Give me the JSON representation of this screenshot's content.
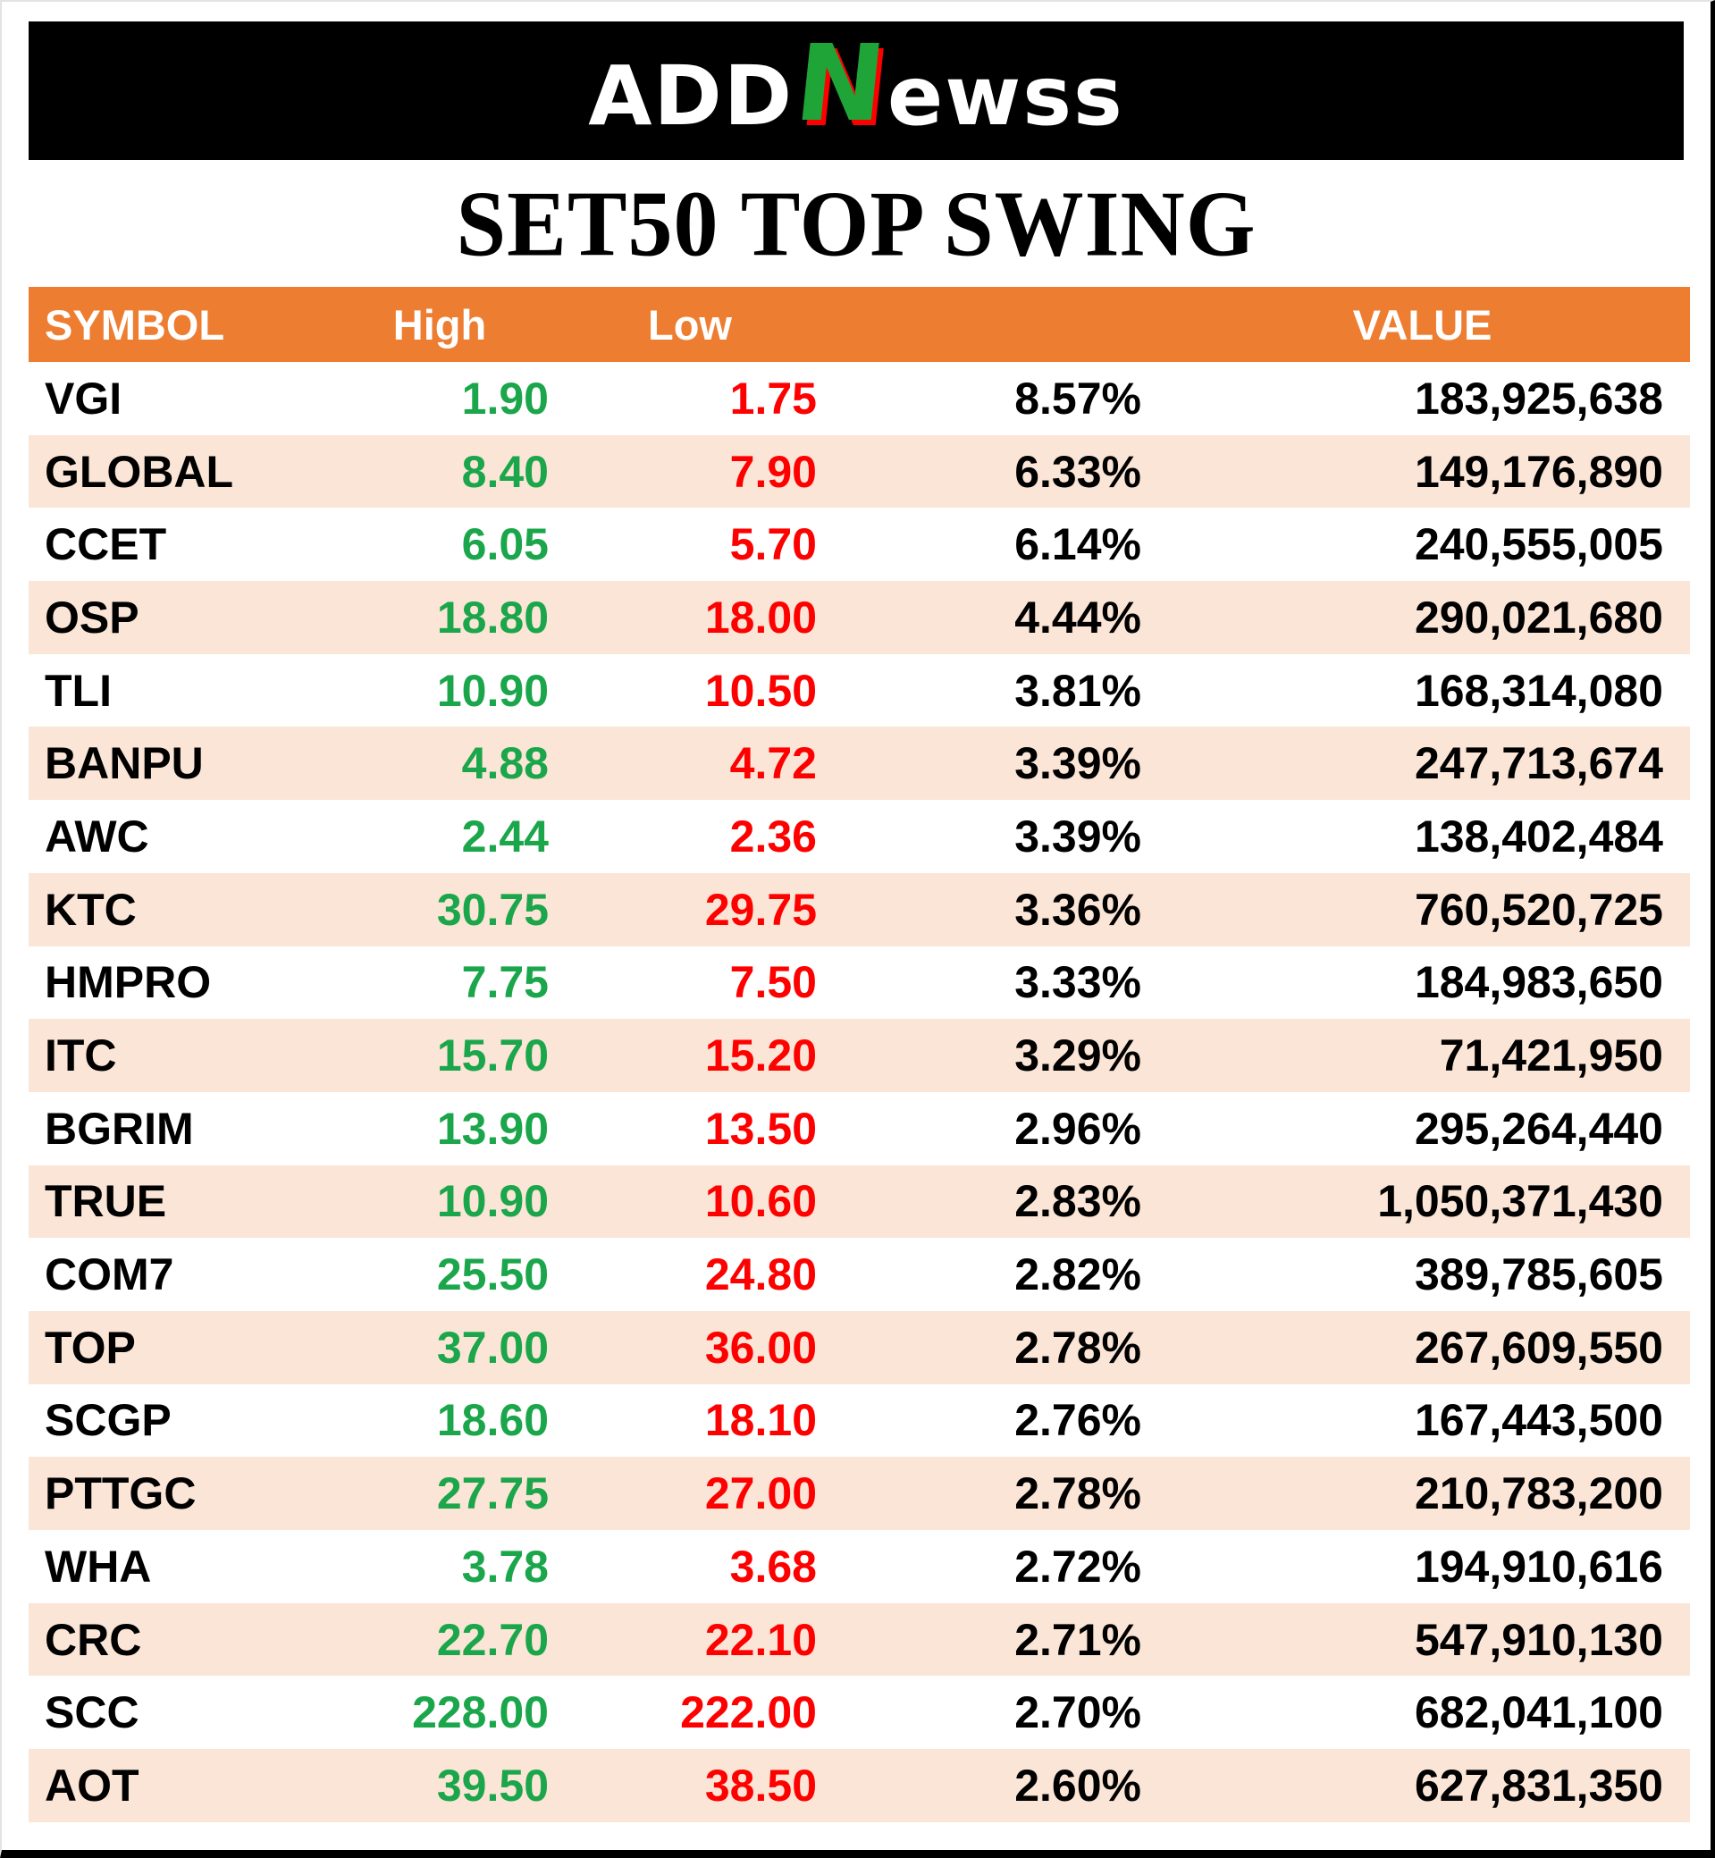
{
  "logo": {
    "part1": "ADD",
    "n": "N",
    "part3": "ewss"
  },
  "title": "SET50 TOP SWING",
  "colors": {
    "banner_bg": "#000000",
    "logo_green": "#1FA437",
    "header_bg": "#ED7D31",
    "alt_row_bg": "#FBE5D6",
    "high_green": "#1BA64B",
    "low_red": "#FF0000"
  },
  "chart_data": {
    "type": "table",
    "title": "SET50 TOP SWING",
    "headers": {
      "symbol": "SYMBOL",
      "high": "High",
      "low": "Low",
      "percent": "",
      "value": "VALUE"
    },
    "rows": [
      {
        "symbol": "VGI",
        "high": "1.90",
        "low": "1.75",
        "percent": "8.57%",
        "value": "183,925,638"
      },
      {
        "symbol": "GLOBAL",
        "high": "8.40",
        "low": "7.90",
        "percent": "6.33%",
        "value": "149,176,890"
      },
      {
        "symbol": "CCET",
        "high": "6.05",
        "low": "5.70",
        "percent": "6.14%",
        "value": "240,555,005"
      },
      {
        "symbol": "OSP",
        "high": "18.80",
        "low": "18.00",
        "percent": "4.44%",
        "value": "290,021,680"
      },
      {
        "symbol": "TLI",
        "high": "10.90",
        "low": "10.50",
        "percent": "3.81%",
        "value": "168,314,080"
      },
      {
        "symbol": "BANPU",
        "high": "4.88",
        "low": "4.72",
        "percent": "3.39%",
        "value": "247,713,674"
      },
      {
        "symbol": "AWC",
        "high": "2.44",
        "low": "2.36",
        "percent": "3.39%",
        "value": "138,402,484"
      },
      {
        "symbol": "KTC",
        "high": "30.75",
        "low": "29.75",
        "percent": "3.36%",
        "value": "760,520,725"
      },
      {
        "symbol": "HMPRO",
        "high": "7.75",
        "low": "7.50",
        "percent": "3.33%",
        "value": "184,983,650"
      },
      {
        "symbol": "ITC",
        "high": "15.70",
        "low": "15.20",
        "percent": "3.29%",
        "value": "71,421,950"
      },
      {
        "symbol": "BGRIM",
        "high": "13.90",
        "low": "13.50",
        "percent": "2.96%",
        "value": "295,264,440"
      },
      {
        "symbol": "TRUE",
        "high": "10.90",
        "low": "10.60",
        "percent": "2.83%",
        "value": "1,050,371,430"
      },
      {
        "symbol": "COM7",
        "high": "25.50",
        "low": "24.80",
        "percent": "2.82%",
        "value": "389,785,605"
      },
      {
        "symbol": "TOP",
        "high": "37.00",
        "low": "36.00",
        "percent": "2.78%",
        "value": "267,609,550"
      },
      {
        "symbol": "SCGP",
        "high": "18.60",
        "low": "18.10",
        "percent": "2.76%",
        "value": "167,443,500"
      },
      {
        "symbol": "PTTGC",
        "high": "27.75",
        "low": "27.00",
        "percent": "2.78%",
        "value": "210,783,200"
      },
      {
        "symbol": "WHA",
        "high": "3.78",
        "low": "3.68",
        "percent": "2.72%",
        "value": "194,910,616"
      },
      {
        "symbol": "CRC",
        "high": "22.70",
        "low": "22.10",
        "percent": "2.71%",
        "value": "547,910,130"
      },
      {
        "symbol": "SCC",
        "high": "228.00",
        "low": "222.00",
        "percent": "2.70%",
        "value": "682,041,100"
      },
      {
        "symbol": "AOT",
        "high": "39.50",
        "low": "38.50",
        "percent": "2.60%",
        "value": "627,831,350"
      }
    ]
  }
}
